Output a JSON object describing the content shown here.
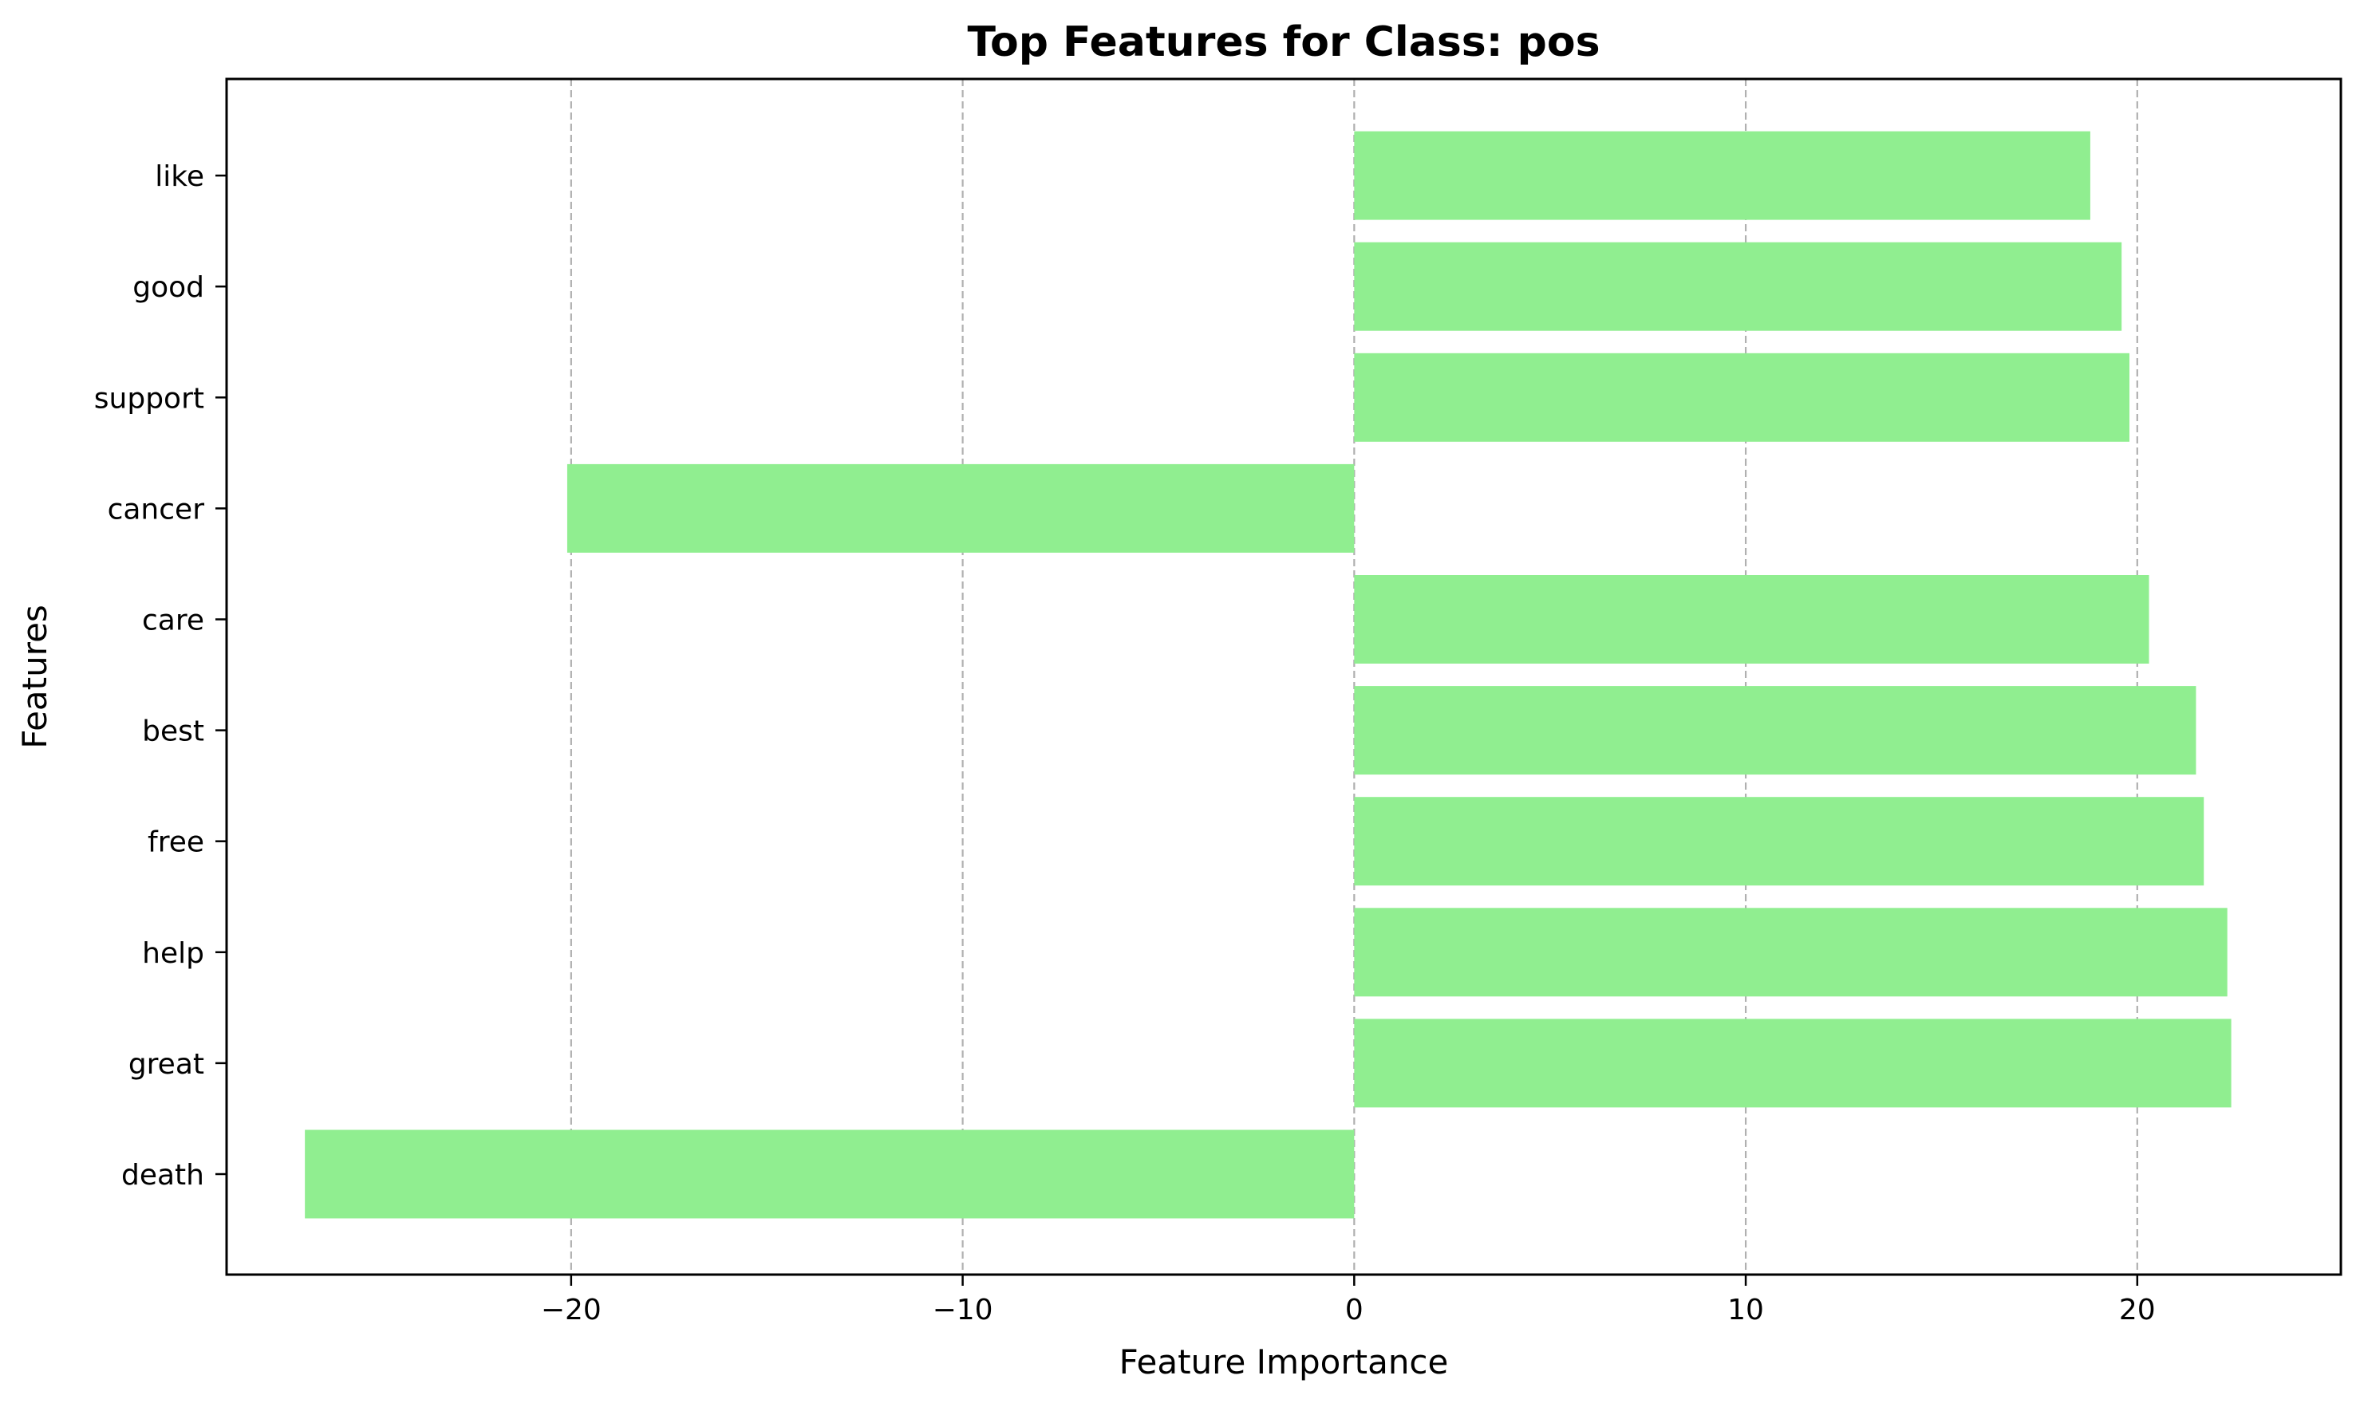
{
  "chart_data": {
    "type": "bar",
    "orientation": "horizontal",
    "title": "Top Features for Class: pos",
    "xlabel": "Feature Importance",
    "ylabel": "Features",
    "categories": [
      "death",
      "great",
      "help",
      "free",
      "best",
      "care",
      "cancer",
      "support",
      "good",
      "like"
    ],
    "values": [
      -26.8,
      22.4,
      22.3,
      21.7,
      21.5,
      20.3,
      -20.1,
      19.8,
      19.6,
      18.8
    ],
    "xlim": [
      -28.8,
      25.2
    ],
    "xticks": [
      -20,
      -10,
      0,
      10,
      20
    ],
    "xtick_labels": [
      "−20",
      "−10",
      "0",
      "10",
      "20"
    ],
    "grid": "x-dashed",
    "colors": {
      "bar": "#90ee90",
      "grid": "#b0b0b0",
      "axis": "#000000"
    }
  }
}
